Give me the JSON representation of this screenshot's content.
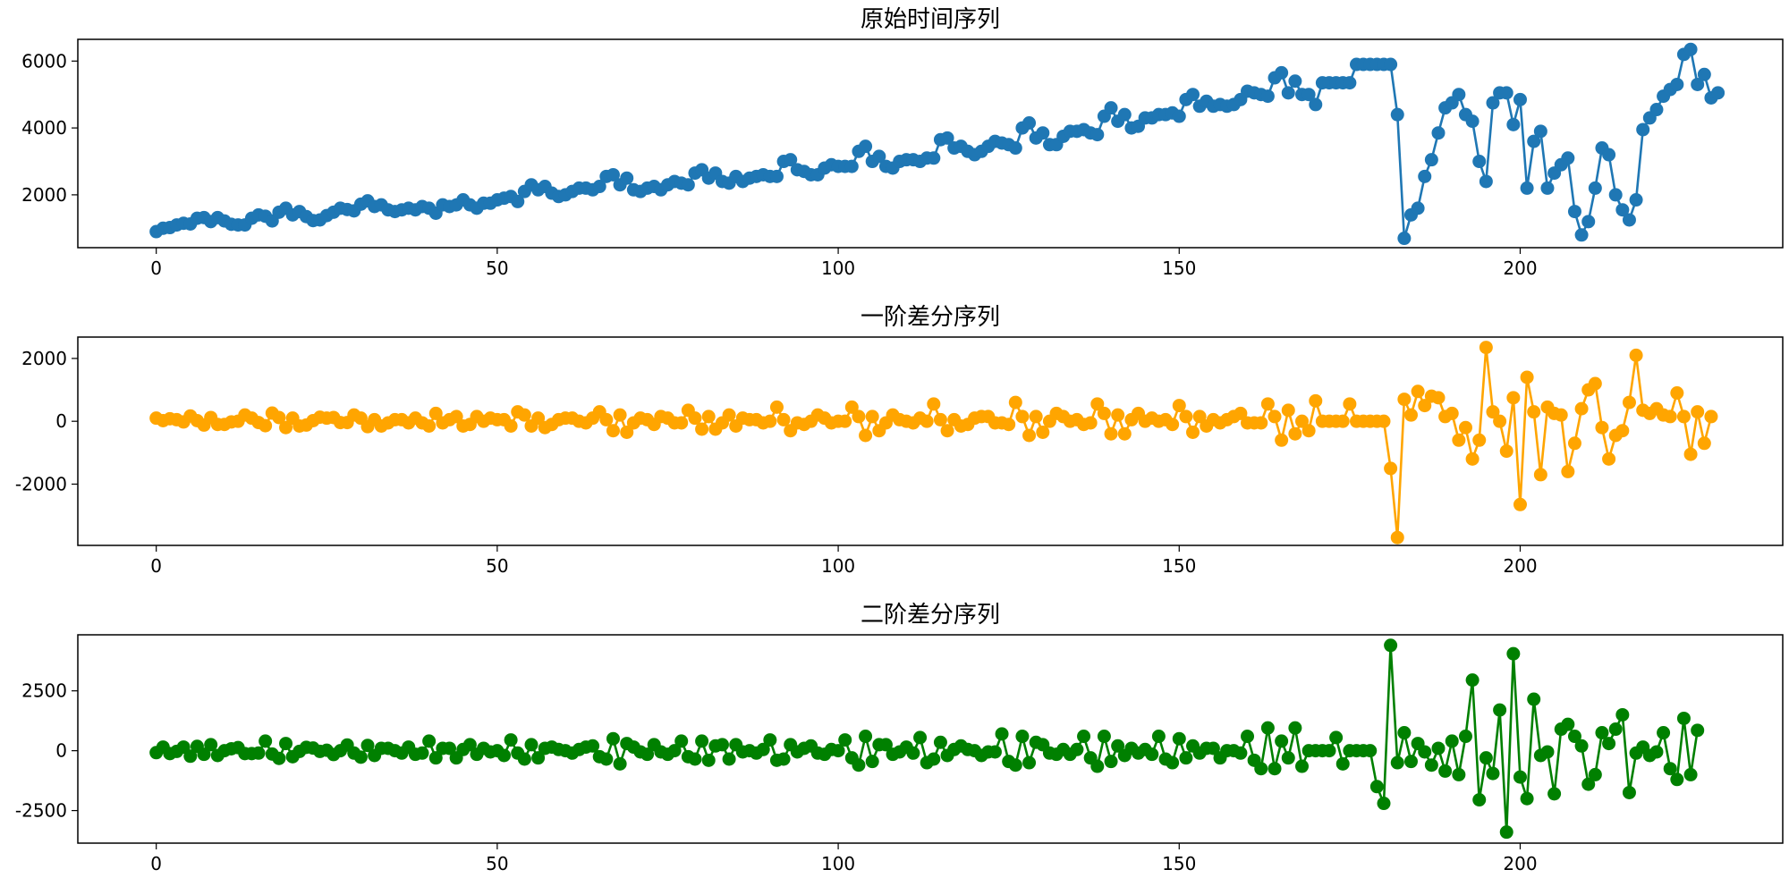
{
  "chart_data": [
    {
      "type": "line",
      "title": "原始时间序列",
      "xlabel": "",
      "ylabel": "",
      "color": "#1f77b4",
      "marker": "circle",
      "grid": false,
      "xlim": [
        -11.5,
        238.5
      ],
      "ylim": [
        420,
        6650
      ],
      "x_ticks": [
        0,
        50,
        100,
        150,
        200
      ],
      "y_ticks": [
        2000,
        4000,
        6000
      ],
      "series": [
        {
          "x_start": 0,
          "values": [
            900,
            1000,
            1020,
            1100,
            1150,
            1130,
            1300,
            1320,
            1200,
            1320,
            1220,
            1120,
            1100,
            1100,
            1300,
            1400,
            1360,
            1220,
            1480,
            1600,
            1400,
            1500,
            1350,
            1230,
            1250,
            1380,
            1480,
            1600,
            1560,
            1520,
            1720,
            1820,
            1650,
            1700,
            1550,
            1500,
            1550,
            1600,
            1550,
            1650,
            1600,
            1450,
            1700,
            1650,
            1700,
            1850,
            1700,
            1600,
            1750,
            1750,
            1850,
            1900,
            1950,
            1800,
            2100,
            2300,
            2150,
            2250,
            2050,
            1950,
            2000,
            2100,
            2200,
            2200,
            2150,
            2250,
            2550,
            2600,
            2300,
            2500,
            2150,
            2100,
            2200,
            2250,
            2150,
            2300,
            2400,
            2350,
            2300,
            2650,
            2750,
            2500,
            2650,
            2400,
            2350,
            2550,
            2400,
            2500,
            2550,
            2600,
            2550,
            2550,
            3000,
            3050,
            2750,
            2700,
            2600,
            2600,
            2800,
            2900,
            2850,
            2850,
            2850,
            3300,
            3450,
            3000,
            3150,
            2850,
            2800,
            3000,
            3050,
            3050,
            3000,
            3100,
            3100,
            3650,
            3700,
            3400,
            3450,
            3300,
            3200,
            3300,
            3450,
            3600,
            3550,
            3500,
            3400,
            4000,
            4150,
            3700,
            3850,
            3500,
            3500,
            3750,
            3900,
            3900,
            3950,
            3850,
            3800,
            4350,
            4600,
            4200,
            4400,
            4000,
            4050,
            4300,
            4300,
            4400,
            4400,
            4450,
            4350,
            4850,
            5000,
            4650,
            4800,
            4650,
            4700,
            4650,
            4700,
            4850,
            5100,
            5050,
            5000,
            4950,
            5500,
            5650,
            5050,
            5400,
            5000,
            5000,
            4700,
            5350,
            5350,
            5350,
            5350,
            5350,
            5900,
            5900,
            5900,
            5900,
            5900,
            5900,
            4400,
            700,
            1400,
            1600,
            2550,
            3050,
            3850,
            4600,
            4750,
            5000,
            4400,
            4200,
            3000,
            2400,
            4750,
            5050,
            5050,
            4100,
            4850,
            2200,
            3600,
            3900,
            2200,
            2650,
            2900,
            3100,
            1500,
            800,
            1200,
            2200,
            3400,
            3200,
            2000,
            1550,
            1250,
            1850,
            3950,
            4300,
            4550,
            4950,
            5150,
            5300,
            6200,
            6350,
            5300,
            5600,
            4900,
            5050
          ]
        }
      ]
    },
    {
      "type": "line",
      "title": "一阶差分序列",
      "xlabel": "",
      "ylabel": "",
      "color": "#ffa500",
      "marker": "circle",
      "grid": false,
      "xlim": [
        -11.5,
        238.5
      ],
      "ylim": [
        -3950,
        2680
      ],
      "x_ticks": [
        0,
        50,
        100,
        150,
        200
      ],
      "y_ticks": [
        -2000,
        0,
        2000
      ],
      "series": [
        {
          "x_start": 0,
          "values": [
            100,
            20,
            80,
            50,
            -20,
            170,
            20,
            -120,
            120,
            -100,
            -100,
            -20,
            0,
            200,
            100,
            -40,
            -140,
            260,
            120,
            -200,
            100,
            -150,
            -120,
            20,
            130,
            100,
            120,
            -40,
            -40,
            200,
            100,
            -170,
            50,
            -150,
            -50,
            50,
            50,
            -50,
            100,
            -50,
            -150,
            250,
            -50,
            50,
            150,
            -150,
            -100,
            150,
            0,
            100,
            50,
            50,
            -150,
            300,
            200,
            -150,
            100,
            -200,
            -100,
            50,
            100,
            100,
            0,
            -50,
            100,
            300,
            50,
            -300,
            200,
            -350,
            -50,
            100,
            50,
            -100,
            150,
            100,
            -50,
            -50,
            350,
            100,
            -250,
            150,
            -250,
            -50,
            200,
            -150,
            100,
            50,
            50,
            -50,
            0,
            450,
            50,
            -300,
            -50,
            -100,
            0,
            200,
            100,
            -50,
            0,
            0,
            450,
            150,
            -450,
            150,
            -300,
            -50,
            200,
            50,
            0,
            -50,
            100,
            0,
            550,
            50,
            -300,
            50,
            -150,
            -100,
            100,
            150,
            150,
            -50,
            -50,
            -100,
            600,
            150,
            -450,
            150,
            -350,
            0,
            250,
            150,
            0,
            50,
            -100,
            -50,
            550,
            250,
            -400,
            200,
            -400,
            50,
            250,
            0,
            100,
            0,
            50,
            -100,
            500,
            150,
            -350,
            150,
            -150,
            50,
            -50,
            50,
            150,
            250,
            -50,
            -50,
            -50,
            550,
            150,
            -600,
            350,
            -400,
            0,
            -300,
            650,
            0,
            0,
            0,
            0,
            550,
            0,
            0,
            0,
            0,
            0,
            -1500,
            -3700,
            700,
            200,
            950,
            500,
            800,
            750,
            150,
            250,
            -600,
            -200,
            -1200,
            -600,
            2350,
            300,
            0,
            -950,
            750,
            -2650,
            1400,
            300,
            -1700,
            450,
            250,
            200,
            -1600,
            -700,
            400,
            1000,
            1200,
            -200,
            -1200,
            -450,
            -300,
            600,
            2100,
            350,
            250,
            400,
            200,
            150,
            900,
            150,
            -1050,
            300,
            -700,
            150
          ]
        }
      ]
    },
    {
      "type": "line",
      "title": "二阶差分序列",
      "xlabel": "",
      "ylabel": "",
      "color": "#008000",
      "marker": "circle",
      "grid": false,
      "xlim": [
        -11.5,
        238.5
      ],
      "ylim": [
        -3860,
        4840
      ],
      "x_ticks": [
        0,
        50,
        100,
        150,
        200
      ],
      "y_ticks": [
        -2500,
        0,
        2500
      ],
      "series": [
        {
          "x_start": 0,
          "values": [
            -80,
            150,
            -120,
            -30,
            150,
            -230,
            180,
            -150,
            250,
            -200,
            0,
            80,
            130,
            -120,
            -120,
            -100,
            400,
            -140,
            -320,
            300,
            -250,
            -30,
            140,
            110,
            -30,
            20,
            -160,
            0,
            240,
            -100,
            -270,
            220,
            -200,
            100,
            100,
            0,
            -100,
            150,
            -150,
            -100,
            400,
            -300,
            100,
            100,
            -300,
            50,
            250,
            -150,
            100,
            -50,
            0,
            -200,
            450,
            -100,
            -350,
            250,
            -300,
            100,
            150,
            50,
            0,
            -100,
            50,
            150,
            200,
            -250,
            -350,
            500,
            -550,
            300,
            150,
            -50,
            -150,
            250,
            -50,
            -150,
            0,
            400,
            -250,
            -350,
            400,
            -400,
            200,
            250,
            -350,
            250,
            -50,
            0,
            -100,
            50,
            450,
            -400,
            -350,
            250,
            -50,
            100,
            200,
            -100,
            -150,
            50,
            0,
            450,
            -300,
            -600,
            600,
            -450,
            250,
            250,
            -150,
            -50,
            150,
            -100,
            550,
            -500,
            -350,
            350,
            -200,
            50,
            200,
            50,
            0,
            -200,
            -50,
            -50,
            700,
            -450,
            -600,
            600,
            -500,
            350,
            250,
            -100,
            -150,
            50,
            -150,
            50,
            600,
            -300,
            -650,
            600,
            -450,
            200,
            -200,
            100,
            -100,
            50,
            -150,
            600,
            -350,
            -500,
            500,
            -300,
            200,
            -100,
            100,
            100,
            -300,
            0,
            0,
            -100,
            600,
            -400,
            -750,
            950,
            -750,
            400,
            -300,
            950,
            -650,
            0,
            0,
            0,
            0,
            550,
            -550,
            0,
            0,
            0,
            0,
            -1500,
            -2200,
            4400,
            -500,
            750,
            -450,
            300,
            -50,
            -600,
            100,
            -850,
            400,
            -1000,
            600,
            2950,
            -2050,
            -300,
            -950,
            1700,
            -3400,
            4050,
            -1100,
            -2000,
            2150,
            -200,
            -50,
            -1800,
            900,
            1100,
            600,
            200,
            -1400,
            -1000,
            750,
            300,
            900,
            1500,
            -1750,
            -100,
            150,
            -200,
            -50,
            750,
            -750,
            -1200,
            1350,
            -1000,
            850
          ]
        }
      ]
    }
  ]
}
